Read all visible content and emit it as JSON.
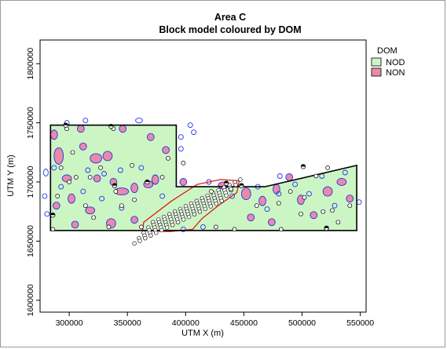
{
  "chart_data": {
    "type": "scatter",
    "title": "Area C",
    "subtitle": "Block model coloured by DOM",
    "xlabel": "UTM X (m)",
    "ylabel": "UTM Y (m)",
    "xlim": [
      275000,
      555000
    ],
    "ylim": [
      1590000,
      1820000
    ],
    "xticks": [
      300000,
      350000,
      400000,
      450000,
      500000,
      550000
    ],
    "yticks": [
      1600000,
      1650000,
      1700000,
      1750000,
      1800000
    ],
    "xtick_labels": [
      "300000",
      "350000",
      "400000",
      "450000",
      "500000",
      "550000"
    ],
    "ytick_labels": [
      "1600000",
      "1650000",
      "1700000",
      "1750000",
      "1800000"
    ],
    "grid": false,
    "legend": {
      "title": "DOM",
      "position": "top-right",
      "entries": [
        {
          "label": "NOD",
          "color": "#ccf5c4"
        },
        {
          "label": "NON",
          "color": "#e98aa8"
        }
      ]
    },
    "colors": {
      "NOD_fill": "#ccf5c4",
      "NON_fill": "#e98aa8",
      "NON_outline": "#2233ee",
      "boundary": "#000000",
      "zone_outline": "#e01a1a",
      "hole_fill": "#ffffff"
    },
    "boundary_polygon": [
      [
        284000,
        1748000
      ],
      [
        392000,
        1748000
      ],
      [
        392000,
        1696000
      ],
      [
        455000,
        1696000
      ],
      [
        468000,
        1696000
      ],
      [
        547000,
        1714000
      ],
      [
        547000,
        1659000
      ],
      [
        284000,
        1659000
      ]
    ],
    "zone_polygon": [
      [
        363000,
        1659000
      ],
      [
        364000,
        1666000
      ],
      [
        388000,
        1684000
      ],
      [
        410000,
        1698000
      ],
      [
        430000,
        1702000
      ],
      [
        446000,
        1701000
      ],
      [
        444000,
        1691000
      ],
      [
        428000,
        1680000
      ],
      [
        414000,
        1669000
      ],
      [
        406000,
        1660000
      ],
      [
        386000,
        1658000
      ]
    ],
    "non_patches": [
      [
        287000,
        1740000,
        3000,
        4000
      ],
      [
        291000,
        1722000,
        4000,
        7000
      ],
      [
        298000,
        1703000,
        4000,
        3000
      ],
      [
        302000,
        1686000,
        3000,
        4000
      ],
      [
        289000,
        1680000,
        3000,
        3000
      ],
      [
        312000,
        1730000,
        3000,
        3000
      ],
      [
        323000,
        1720000,
        5000,
        4000
      ],
      [
        333000,
        1722000,
        4000,
        4000
      ],
      [
        324000,
        1703000,
        3000,
        3000
      ],
      [
        338000,
        1700000,
        3000,
        3000
      ],
      [
        345000,
        1692000,
        6000,
        3000
      ],
      [
        356000,
        1695000,
        3000,
        4000
      ],
      [
        368000,
        1698000,
        4000,
        3000
      ],
      [
        374000,
        1702000,
        3000,
        4000
      ],
      [
        336000,
        1665000,
        4000,
        4000
      ],
      [
        356000,
        1668000,
        3000,
        3000
      ],
      [
        318000,
        1676000,
        4000,
        3000
      ],
      [
        305000,
        1664000,
        3000,
        3000
      ],
      [
        383000,
        1727000,
        3000,
        3000
      ],
      [
        370000,
        1738000,
        3000,
        3000
      ],
      [
        346000,
        1745000,
        3000,
        3000
      ],
      [
        398000,
        1700000,
        3000,
        3000
      ],
      [
        432000,
        1697000,
        4000,
        3000
      ],
      [
        452000,
        1690000,
        4000,
        5000
      ],
      [
        466000,
        1684000,
        3000,
        4000
      ],
      [
        456000,
        1670000,
        3000,
        3000
      ],
      [
        478000,
        1694000,
        3000,
        4000
      ],
      [
        489000,
        1704000,
        3000,
        3000
      ],
      [
        499000,
        1685000,
        3000,
        4000
      ],
      [
        510000,
        1672000,
        3000,
        3000
      ],
      [
        522000,
        1692000,
        4000,
        4000
      ],
      [
        534000,
        1700000,
        4000,
        3000
      ],
      [
        541000,
        1686000,
        3000,
        3000
      ],
      [
        474000,
        1666000,
        3000,
        3000
      ],
      [
        310000,
        1745000,
        3000,
        3000
      ]
    ],
    "non_outlines": [
      [
        298000,
        1750000,
        2000,
        2000
      ],
      [
        314000,
        1752000,
        2000,
        2000
      ],
      [
        360000,
        1752000,
        3000,
        2000
      ],
      [
        404000,
        1748000,
        2000,
        2000
      ],
      [
        407000,
        1742000,
        2000,
        2000
      ],
      [
        396000,
        1738000,
        2000,
        2000
      ],
      [
        396000,
        1728000,
        2000,
        2000
      ],
      [
        280000,
        1708000,
        2000,
        3000
      ],
      [
        279000,
        1688000,
        2000,
        2000
      ],
      [
        281000,
        1673000,
        2000,
        2000
      ],
      [
        287000,
        1712000,
        2000,
        2000
      ],
      [
        293000,
        1696000,
        2000,
        2000
      ],
      [
        316000,
        1710000,
        2000,
        2000
      ],
      [
        330000,
        1707000,
        2000,
        2000
      ],
      [
        344000,
        1710000,
        2000,
        2000
      ],
      [
        362000,
        1712000,
        2000,
        2000
      ],
      [
        380000,
        1688000,
        2000,
        2000
      ],
      [
        328000,
        1686000,
        2000,
        2000
      ],
      [
        345000,
        1678000,
        2000,
        2000
      ],
      [
        312000,
        1692000,
        2000,
        2000
      ],
      [
        420000,
        1700000,
        2000,
        2000
      ],
      [
        440000,
        1688000,
        2000,
        2000
      ],
      [
        462000,
        1696000,
        2000,
        2000
      ],
      [
        470000,
        1677000,
        2000,
        2000
      ],
      [
        481000,
        1705000,
        2000,
        2000
      ],
      [
        494000,
        1698000,
        2000,
        2000
      ],
      [
        506000,
        1690000,
        2000,
        2000
      ],
      [
        517000,
        1705000,
        2000,
        2000
      ],
      [
        528000,
        1680000,
        2000,
        2000
      ],
      [
        537000,
        1708000,
        2000,
        2000
      ],
      [
        549000,
        1683000,
        2000,
        2000
      ],
      [
        480000,
        1690000,
        2000,
        2000
      ],
      [
        415000,
        1662000,
        2000,
        2000
      ],
      [
        398000,
        1660000,
        2000,
        2000
      ]
    ],
    "drillholes": [
      [
        286000,
        1660000
      ],
      [
        290000,
        1688000
      ],
      [
        298000,
        1745000
      ],
      [
        300000,
        1700000
      ],
      [
        306000,
        1704000
      ],
      [
        314000,
        1680000
      ],
      [
        318000,
        1704000
      ],
      [
        321000,
        1670000
      ],
      [
        327000,
        1712000
      ],
      [
        334000,
        1662000
      ],
      [
        338000,
        1745000
      ],
      [
        340000,
        1692000
      ],
      [
        345000,
        1680000
      ],
      [
        354000,
        1714000
      ],
      [
        356000,
        1685000
      ],
      [
        362000,
        1662000
      ],
      [
        380000,
        1704000
      ],
      [
        385000,
        1720000
      ],
      [
        398000,
        1716000
      ],
      [
        422000,
        1692000
      ],
      [
        439000,
        1694000
      ],
      [
        461000,
        1680000
      ],
      [
        480000,
        1682000
      ],
      [
        490000,
        1692000
      ],
      [
        499000,
        1673000
      ],
      [
        502000,
        1687000
      ],
      [
        512000,
        1705000
      ],
      [
        518000,
        1675000
      ],
      [
        521000,
        1660000
      ],
      [
        526000,
        1676000
      ],
      [
        531000,
        1666000
      ],
      [
        541000,
        1680000
      ],
      [
        522000,
        1712000
      ],
      [
        482000,
        1660000
      ],
      [
        442000,
        1660000
      ],
      [
        426000,
        1662000
      ],
      [
        303000,
        1725000
      ],
      [
        293000,
        1712000
      ]
    ],
    "drillholes_half": [
      [
        297000,
        1748000
      ],
      [
        336000,
        1747000
      ],
      [
        339000,
        1697000
      ],
      [
        367000,
        1700000
      ],
      [
        435000,
        1699000
      ],
      [
        448000,
        1697000
      ],
      [
        501000,
        1713000
      ],
      [
        521000,
        1661000
      ],
      [
        286000,
        1672000
      ]
    ],
    "zone_holes": {
      "rows": 5,
      "start": [
        372000,
        1666000
      ],
      "end": [
        447000,
        1702000
      ],
      "row_offset": [
        -4000,
        -4500
      ],
      "per_row": 17
    }
  }
}
